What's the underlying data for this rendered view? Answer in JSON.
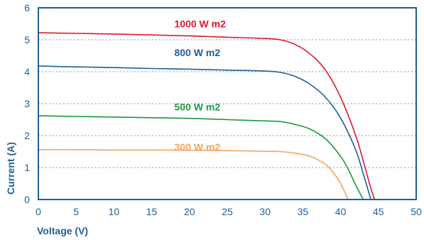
{
  "chart_data": {
    "type": "line",
    "title": "",
    "xlabel": "Voltage (V)",
    "ylabel": "Current (A)",
    "xlim": [
      0,
      50
    ],
    "ylim": [
      0,
      6
    ],
    "x_ticks": [
      "0",
      "5",
      "10",
      "15",
      "20",
      "25",
      "30",
      "35",
      "40",
      "45",
      "50"
    ],
    "y_ticks": [
      "0",
      "1",
      "2",
      "3",
      "4",
      "5",
      "6"
    ],
    "grid": "horizontal dotted",
    "series": [
      {
        "name": "1000 W m2",
        "color": "#e0182d",
        "x": [
          0,
          5,
          10,
          15,
          20,
          25,
          30,
          32,
          34,
          36,
          38,
          40,
          42,
          43,
          44,
          44.5
        ],
        "y": [
          5.22,
          5.2,
          5.18,
          5.15,
          5.12,
          5.08,
          5.04,
          5.0,
          4.85,
          4.55,
          4.05,
          3.2,
          2.0,
          1.2,
          0.35,
          0
        ]
      },
      {
        "name": "800 W m2",
        "color": "#1f5f99",
        "x": [
          0,
          5,
          10,
          15,
          20,
          25,
          30,
          32,
          34,
          36,
          38,
          40,
          42,
          43,
          44
        ],
        "y": [
          4.18,
          4.15,
          4.13,
          4.1,
          4.08,
          4.05,
          4.02,
          3.98,
          3.85,
          3.6,
          3.2,
          2.55,
          1.55,
          0.8,
          0
        ]
      },
      {
        "name": "500 W m2",
        "color": "#1a9a3c",
        "x": [
          0,
          5,
          10,
          15,
          20,
          25,
          30,
          32,
          34,
          36,
          38,
          40,
          41,
          42,
          43
        ],
        "y": [
          2.62,
          2.6,
          2.58,
          2.56,
          2.54,
          2.5,
          2.46,
          2.44,
          2.35,
          2.2,
          1.9,
          1.35,
          0.95,
          0.45,
          0
        ]
      },
      {
        "name": "300 W m2",
        "color": "#f4a460",
        "x": [
          0,
          5,
          10,
          15,
          20,
          25,
          30,
          32,
          34,
          36,
          38,
          39,
          40,
          41
        ],
        "y": [
          1.56,
          1.56,
          1.55,
          1.55,
          1.54,
          1.53,
          1.51,
          1.5,
          1.45,
          1.35,
          1.1,
          0.85,
          0.5,
          0
        ]
      }
    ],
    "series_labels": [
      {
        "text": "1000 W m2",
        "color": "#e0182d",
        "x": 18,
        "y": 5.5
      },
      {
        "text": "800 W m2",
        "color": "#1f5f99",
        "x": 18,
        "y": 4.6
      },
      {
        "text": "500 W m2",
        "color": "#1a9a3c",
        "x": 18,
        "y": 2.9
      },
      {
        "text": "300 W m2",
        "color": "#f4a460",
        "x": 18,
        "y": 1.64
      }
    ]
  }
}
